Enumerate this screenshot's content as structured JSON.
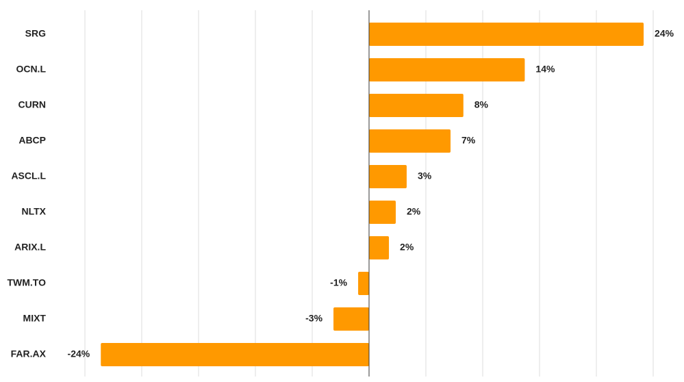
{
  "chart_data": {
    "type": "hbar",
    "categories": [
      "SRG",
      "OCN.L",
      "CURN",
      "ABCP",
      "ASCL.L",
      "NLTX",
      "ARIX.L",
      "TWM.TO",
      "MIXT",
      "FAR.AX"
    ],
    "values": [
      24.16,
      13.7,
      8.3,
      7.17,
      3.31,
      2.35,
      1.75,
      -0.96,
      -3.13,
      -23.6
    ],
    "value_labels": [
      "24%",
      "14%",
      "8%",
      "7%",
      "3%",
      "2%",
      "2%",
      "-1%",
      "-3%",
      "-24%"
    ],
    "color": "#ff9900",
    "xlim": [
      -25,
      25
    ],
    "xticks": [
      -25,
      -20,
      -15,
      -10,
      -5,
      0,
      5,
      10,
      15,
      20,
      25
    ],
    "grid": true
  }
}
